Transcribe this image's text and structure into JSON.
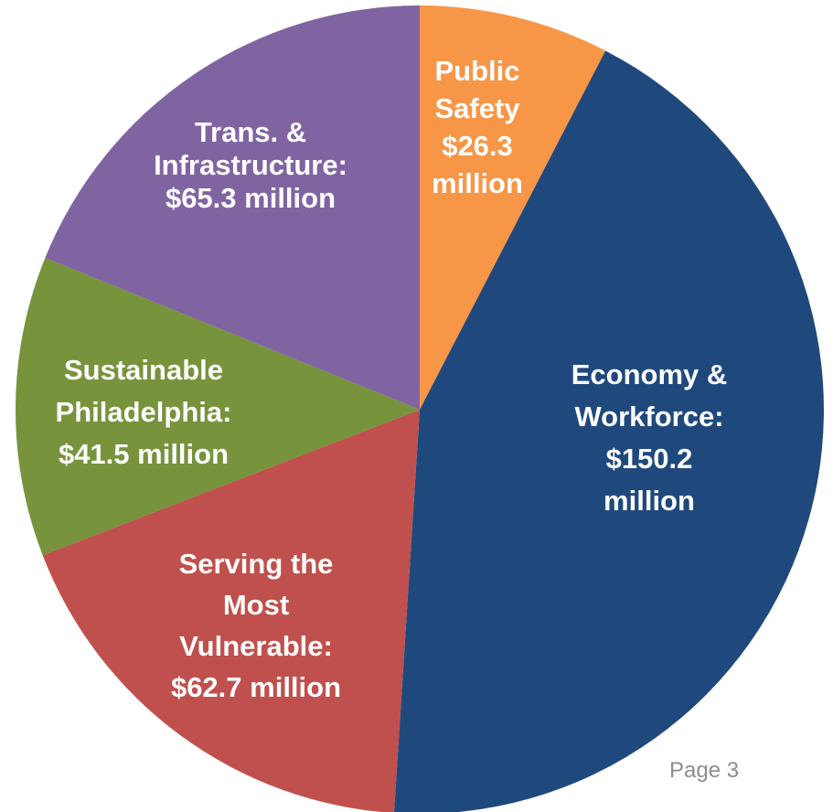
{
  "page": {
    "number_label": "Page 3"
  },
  "chart_data": {
    "type": "pie",
    "title": "",
    "slices": [
      {
        "name": "Public Safety",
        "value": 26.3,
        "unit": "million",
        "color": "#F79646",
        "label_lines": [
          "Public",
          "Safety",
          "$26.3",
          "million"
        ]
      },
      {
        "name": "Economy & Workforce",
        "value": 150.2,
        "unit": "million",
        "color": "#1F497D",
        "label_lines": [
          "Economy &",
          "Workforce:",
          "$150.2",
          "million"
        ]
      },
      {
        "name": "Serving the Most Vulnerable",
        "value": 62.7,
        "unit": "million",
        "color": "#C0504D",
        "label_lines": [
          "Serving the",
          "Most",
          "Vulnerable:",
          "$62.7 million"
        ]
      },
      {
        "name": "Sustainable Philadelphia",
        "value": 41.5,
        "unit": "million",
        "color": "#77933C",
        "label_lines": [
          "Sustainable",
          "Philadelphia:",
          "$41.5 million"
        ]
      },
      {
        "name": "Trans. & Infrastructure",
        "value": 65.3,
        "unit": "million",
        "color": "#8064A2",
        "label_lines": [
          "Trans. &",
          "Infrastructure:",
          "$65.3 million"
        ]
      }
    ],
    "start": "12 o'clock",
    "direction": "clockwise",
    "legend": "none"
  }
}
